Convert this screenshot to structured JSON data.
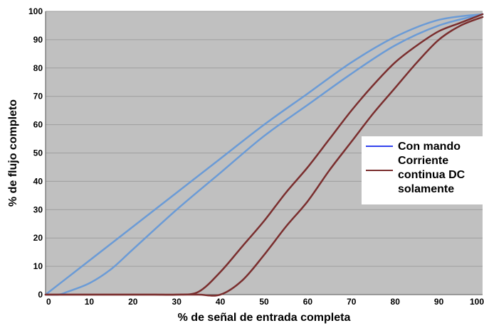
{
  "chart_data": {
    "type": "line",
    "xlabel": "% de señal de entrada completa",
    "ylabel": "% de flujo completo",
    "xlim": [
      0,
      100
    ],
    "ylim": [
      0,
      100
    ],
    "xticks": [
      "0",
      "10",
      "20",
      "30",
      "40",
      "50",
      "60",
      "70",
      "80",
      "90",
      "100"
    ],
    "yticks": [
      "0",
      "10",
      "20",
      "30",
      "40",
      "50",
      "60",
      "70",
      "80",
      "90",
      "100"
    ],
    "grid": "horizontal",
    "background_color": "#c0c0c0",
    "legend_position": "right",
    "series": [
      {
        "name": "Con mando",
        "color": "#6b9bd6",
        "legend_color": "#3344ee",
        "legend_lines": [
          "Con mando"
        ],
        "curves": [
          {
            "x": [
              0,
              5,
              10,
              20,
              30,
              40,
              50,
              60,
              70,
              80,
              90,
              100
            ],
            "y": [
              0,
              6,
              12,
              24,
              36,
              48,
              60,
              71,
              82,
              91,
              97,
              99
            ]
          },
          {
            "x": [
              0,
              3,
              5,
              10,
              15,
              20,
              30,
              40,
              50,
              60,
              70,
              80,
              90,
              100
            ],
            "y": [
              0,
              0,
              1,
              4,
              9,
              16,
              30,
              43,
              56,
              67,
              78,
              88,
              95,
              99
            ]
          }
        ]
      },
      {
        "name": "Corriente continua DC solamente",
        "color": "#7a2e2e",
        "legend_color": "#7a2e2e",
        "legend_lines": [
          "Corriente",
          "continua DC",
          "solamente"
        ],
        "curves": [
          {
            "x": [
              0,
              5,
              10,
              15,
              20,
              25,
              30,
              35,
              40,
              45,
              50,
              55,
              60,
              65,
              70,
              75,
              80,
              85,
              90,
              95,
              100
            ],
            "y": [
              0,
              0,
              0,
              0,
              0,
              0,
              0,
              1,
              8,
              17,
              26,
              36,
              45,
              55,
              65,
              74,
              82,
              88,
              93,
              96,
              99
            ]
          },
          {
            "x": [
              0,
              5,
              10,
              15,
              20,
              25,
              30,
              35,
              40,
              45,
              50,
              55,
              60,
              65,
              70,
              75,
              80,
              85,
              90,
              95,
              100
            ],
            "y": [
              0,
              0,
              0,
              0,
              0,
              0,
              0,
              0,
              0,
              5,
              14,
              24,
              33,
              44,
              54,
              64,
              73,
              82,
              90,
              95,
              98
            ]
          }
        ]
      }
    ]
  }
}
